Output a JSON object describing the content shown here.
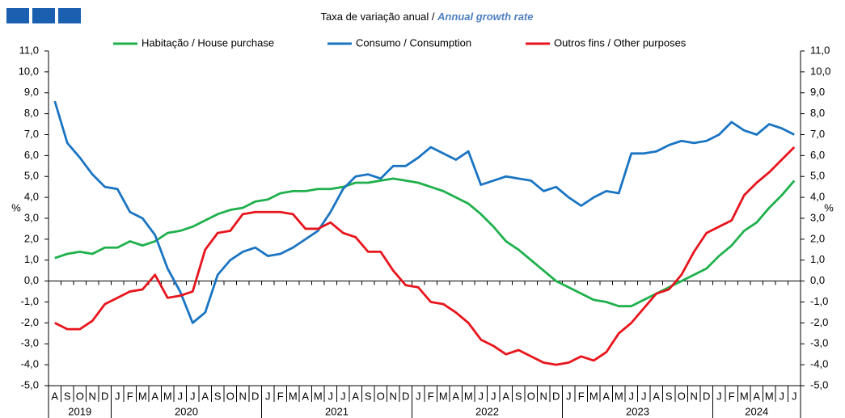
{
  "chart_data": {
    "type": "line",
    "title": "Taxa de variação anual / ",
    "subtitle": "Annual growth rate",
    "ylabel": "%",
    "categories": [
      "A",
      "S",
      "O",
      "N",
      "D",
      "J",
      "F",
      "M",
      "A",
      "M",
      "J",
      "J",
      "A",
      "S",
      "O",
      "N",
      "D",
      "J",
      "F",
      "M",
      "A",
      "M",
      "J",
      "J",
      "A",
      "S",
      "O",
      "N",
      "D",
      "J",
      "F",
      "M",
      "A",
      "M",
      "J",
      "J",
      "A",
      "S",
      "O",
      "N",
      "D",
      "J",
      "F",
      "M",
      "A",
      "M",
      "J",
      "J",
      "A",
      "S",
      "O",
      "N",
      "D",
      "J",
      "F",
      "M",
      "A",
      "M",
      "J",
      "J"
    ],
    "category_groups": [
      {
        "label": "2019",
        "size": 5
      },
      {
        "label": "2020",
        "size": 12
      },
      {
        "label": "2021",
        "size": 12
      },
      {
        "label": "2022",
        "size": 12
      },
      {
        "label": "2023",
        "size": 12
      },
      {
        "label": "2024",
        "size": 7
      }
    ],
    "series": [
      {
        "name": "Habitação / House purchase",
        "color": "#1fb04c",
        "values": [
          1.1,
          1.3,
          1.4,
          1.3,
          1.6,
          1.6,
          1.9,
          1.7,
          1.9,
          2.3,
          2.4,
          2.6,
          2.9,
          3.2,
          3.4,
          3.5,
          3.8,
          3.9,
          4.2,
          4.3,
          4.3,
          4.4,
          4.4,
          4.5,
          4.7,
          4.7,
          4.8,
          4.9,
          4.8,
          4.7,
          4.5,
          4.3,
          4.0,
          3.7,
          3.2,
          2.6,
          1.9,
          1.5,
          1.0,
          0.5,
          0.0,
          -0.3,
          -0.6,
          -0.9,
          -1.0,
          -1.2,
          -1.2,
          -0.9,
          -0.6,
          -0.3,
          0.0,
          0.3,
          0.6,
          1.2,
          1.7,
          2.4,
          2.8,
          3.5,
          4.1,
          4.8
        ]
      },
      {
        "name": "Consumo / Consumption",
        "color": "#1a74c2",
        "values": [
          8.6,
          6.6,
          5.9,
          5.1,
          4.5,
          4.4,
          3.3,
          3.0,
          2.2,
          0.6,
          -0.5,
          -2.0,
          -1.5,
          0.3,
          1.0,
          1.4,
          1.6,
          1.2,
          1.3,
          1.6,
          2.0,
          2.4,
          3.3,
          4.4,
          5.0,
          5.1,
          4.9,
          5.5,
          5.5,
          5.9,
          6.4,
          6.1,
          5.8,
          6.2,
          4.6,
          4.8,
          5.0,
          4.9,
          4.8,
          4.3,
          4.5,
          4.0,
          3.6,
          4.0,
          4.3,
          4.2,
          6.1,
          6.1,
          6.2,
          6.5,
          6.7,
          6.6,
          6.7,
          7.0,
          7.6,
          7.2,
          7.0,
          7.5,
          7.3,
          7.0
        ]
      },
      {
        "name": "Outros fins / Other purposes",
        "color": "#e8141c",
        "values": [
          -2.0,
          -2.3,
          -2.3,
          -1.9,
          -1.1,
          -0.8,
          -0.5,
          -0.4,
          0.3,
          -0.8,
          -0.7,
          -0.5,
          1.5,
          2.3,
          2.4,
          3.2,
          3.3,
          3.3,
          3.3,
          3.2,
          2.5,
          2.5,
          2.8,
          2.3,
          2.1,
          1.4,
          1.4,
          0.5,
          -0.2,
          -0.3,
          -1.0,
          -1.1,
          -1.5,
          -2.0,
          -2.8,
          -3.1,
          -3.5,
          -3.3,
          -3.6,
          -3.9,
          -4.0,
          -3.9,
          -3.6,
          -3.8,
          -3.4,
          -2.5,
          -2.0,
          -1.3,
          -0.6,
          -0.4,
          0.3,
          1.4,
          2.3,
          2.6,
          2.9,
          4.1,
          4.7,
          5.2,
          5.8,
          6.4
        ]
      }
    ],
    "ylim": [
      -5,
      11
    ],
    "yticks": [
      {
        "value": -5,
        "label": "-5,0"
      },
      {
        "value": -4,
        "label": "-4,0"
      },
      {
        "value": -3,
        "label": "-3,0"
      },
      {
        "value": -2,
        "label": "-2,0"
      },
      {
        "value": -1,
        "label": "-1,0"
      },
      {
        "value": 0,
        "label": "0,0"
      },
      {
        "value": 1,
        "label": "1,0"
      },
      {
        "value": 2,
        "label": "2,0"
      },
      {
        "value": 3,
        "label": "3,0"
      },
      {
        "value": 4,
        "label": "4,0"
      },
      {
        "value": 5,
        "label": "5,0"
      },
      {
        "value": 6,
        "label": "6,0"
      },
      {
        "value": 7,
        "label": "7,0"
      },
      {
        "value": 8,
        "label": "8,0"
      },
      {
        "value": 9,
        "label": "9,0"
      },
      {
        "value": 10,
        "label": "10,0"
      },
      {
        "value": 11,
        "label": "11,0"
      }
    ],
    "grid": false
  }
}
